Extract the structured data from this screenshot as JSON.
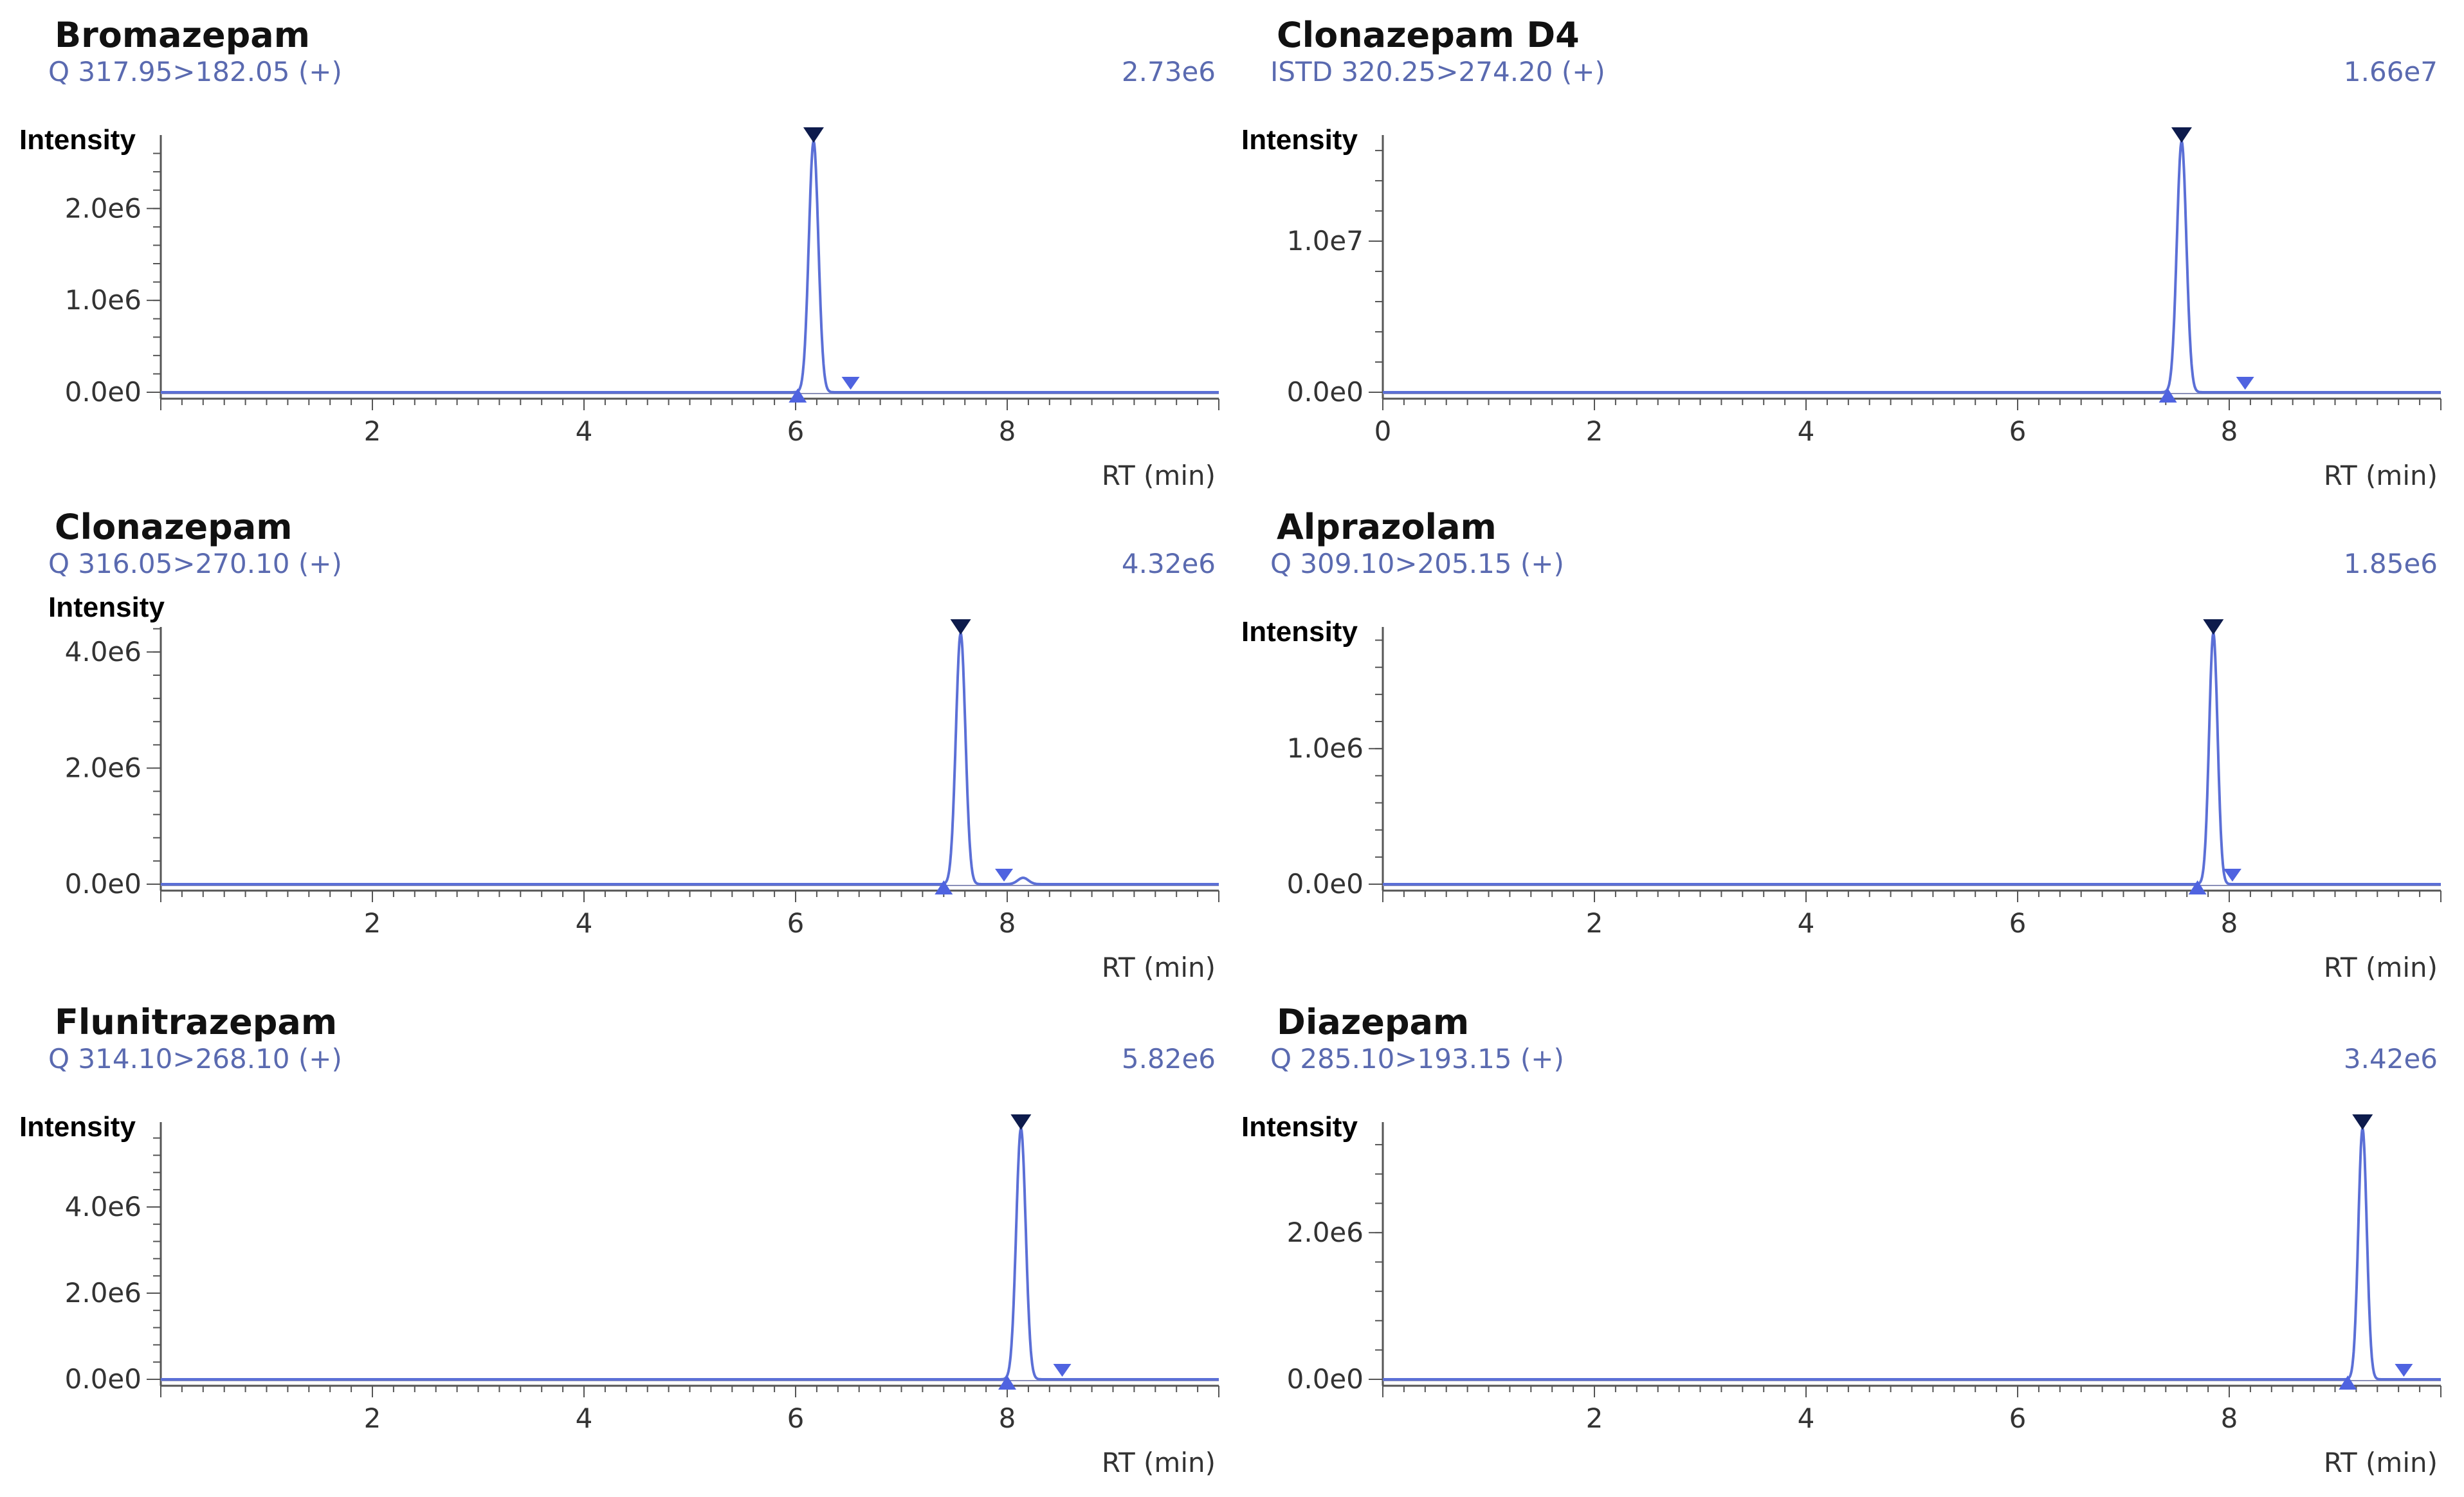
{
  "colors": {
    "trace": "#5b6fd6",
    "baseline": "#8a8fb8",
    "apex_marker": "#0d1b4c",
    "boundary_marker": "#4f63e0",
    "info_text": "#5a6ab0",
    "axis": "#555555"
  },
  "chart_data": [
    {
      "type": "line",
      "title": "Bromazepam",
      "transition": "Q 317.95>182.05 (+)",
      "max_intensity": "2.73e6",
      "ylabel": "Intensity",
      "xlabel": "RT (min)",
      "xlim": [
        0,
        10
      ],
      "ylim": [
        0,
        2730000.0
      ],
      "x_ticks": [
        2,
        4,
        6,
        8
      ],
      "y_ticks": [
        {
          "value": 0,
          "label": "0.0e0"
        },
        {
          "value": 1000000,
          "label": "1.0e6"
        },
        {
          "value": 2000000,
          "label": "2.0e6"
        }
      ],
      "peak": {
        "rt": 6.17,
        "height": 2730000.0,
        "width": 0.045
      },
      "secondary_peaks": [],
      "markers": {
        "apex": 6.17,
        "start": 6.02,
        "end": 6.52
      }
    },
    {
      "type": "line",
      "title": "Clonazepam D4",
      "transition": "ISTD 320.25>274.20 (+)",
      "max_intensity": "1.66e7",
      "ylabel": "Intensity",
      "xlabel": "RT (min)",
      "xlim": [
        0,
        10
      ],
      "ylim": [
        0,
        16600000.0
      ],
      "x_ticks": [
        0,
        2,
        4,
        6,
        8
      ],
      "y_ticks": [
        {
          "value": 0,
          "label": "0.0e0"
        },
        {
          "value": 10000000,
          "label": "1.0e7"
        }
      ],
      "peak": {
        "rt": 7.55,
        "height": 16600000.0,
        "width": 0.045
      },
      "secondary_peaks": [],
      "markers": {
        "apex": 7.55,
        "start": 7.42,
        "end": 8.15
      }
    },
    {
      "type": "line",
      "title": "Clonazepam",
      "transition": "Q 316.05>270.10 (+)",
      "max_intensity": "4.32e6",
      "ylabel": "Intensity",
      "xlabel": "RT (min)",
      "xlim": [
        0,
        10
      ],
      "ylim": [
        0,
        4320000.0
      ],
      "x_ticks": [
        2,
        4,
        6,
        8
      ],
      "y_ticks": [
        {
          "value": 0,
          "label": "0.0e0"
        },
        {
          "value": 2000000,
          "label": "2.0e6"
        },
        {
          "value": 4000000,
          "label": "4.0e6"
        }
      ],
      "peak": {
        "rt": 7.56,
        "height": 4320000.0,
        "width": 0.045
      },
      "secondary_peaks": [
        {
          "rt": 8.15,
          "height": 110000.0,
          "width": 0.05
        }
      ],
      "markers": {
        "apex": 7.56,
        "start": 7.4,
        "end": 7.97
      }
    },
    {
      "type": "line",
      "title": "Alprazolam",
      "transition": "Q 309.10>205.15 (+)",
      "max_intensity": "1.85e6",
      "ylabel": "Intensity",
      "xlabel": "RT (min)",
      "xlim": [
        0,
        10
      ],
      "ylim": [
        0,
        1850000.0
      ],
      "x_ticks": [
        2,
        4,
        6,
        8
      ],
      "y_ticks": [
        {
          "value": 0,
          "label": "0.0e0"
        },
        {
          "value": 1000000,
          "label": "1.0e6"
        }
      ],
      "peak": {
        "rt": 7.85,
        "height": 1850000.0,
        "width": 0.04
      },
      "secondary_peaks": [],
      "markers": {
        "apex": 7.85,
        "start": 7.7,
        "end": 8.03
      }
    },
    {
      "type": "line",
      "title": "Flunitrazepam",
      "transition": "Q 314.10>268.10 (+)",
      "max_intensity": "5.82e6",
      "ylabel": "Intensity",
      "xlabel": "RT (min)",
      "xlim": [
        0,
        10
      ],
      "ylim": [
        0,
        5820000.0
      ],
      "x_ticks": [
        2,
        4,
        6,
        8
      ],
      "y_ticks": [
        {
          "value": 0,
          "label": "0.0e0"
        },
        {
          "value": 2000000,
          "label": "2.0e6"
        },
        {
          "value": 4000000,
          "label": "4.0e6"
        }
      ],
      "peak": {
        "rt": 8.13,
        "height": 5820000.0,
        "width": 0.045
      },
      "secondary_peaks": [],
      "markers": {
        "apex": 8.13,
        "start": 8.0,
        "end": 8.52
      }
    },
    {
      "type": "line",
      "title": "Diazepam",
      "transition": "Q 285.10>193.15 (+)",
      "max_intensity": "3.42e6",
      "ylabel": "Intensity",
      "xlabel": "RT (min)",
      "xlim": [
        0,
        10
      ],
      "ylim": [
        0,
        3420000.0
      ],
      "x_ticks": [
        2,
        4,
        6,
        8
      ],
      "y_ticks": [
        {
          "value": 0,
          "label": "0.0e0"
        },
        {
          "value": 2000000,
          "label": "2.0e6"
        }
      ],
      "peak": {
        "rt": 9.26,
        "height": 3420000.0,
        "width": 0.04
      },
      "secondary_peaks": [],
      "markers": {
        "apex": 9.26,
        "start": 9.12,
        "end": 9.65
      }
    }
  ]
}
